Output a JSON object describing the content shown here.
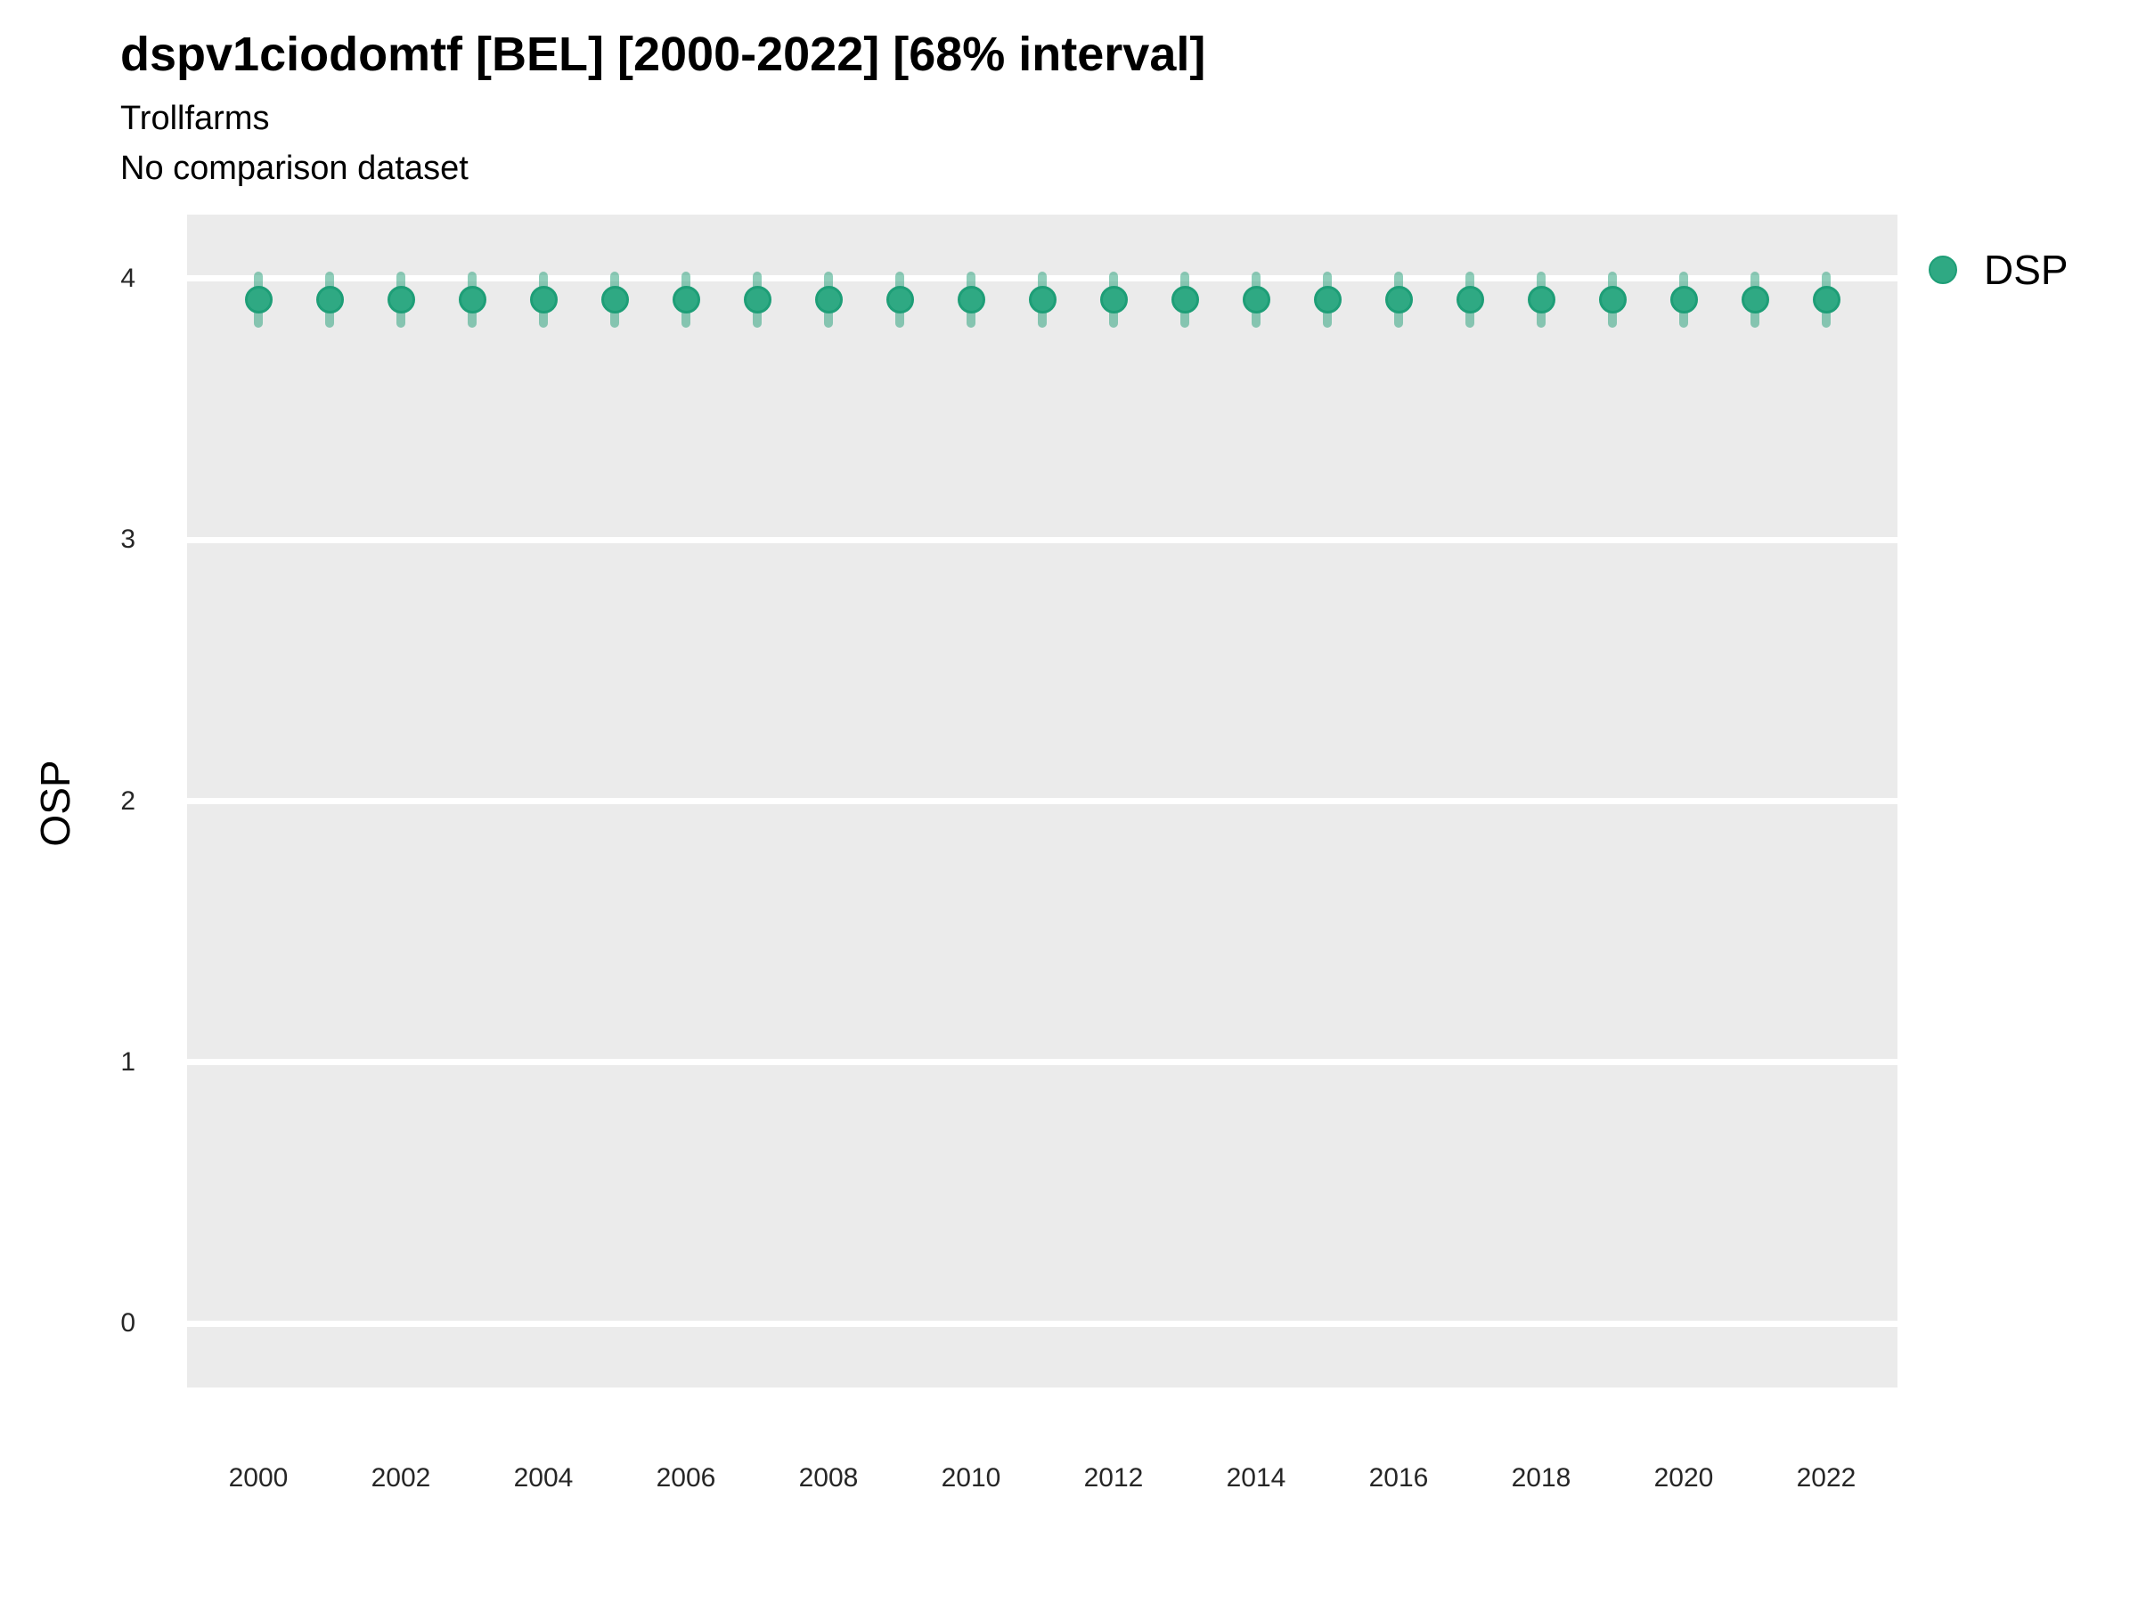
{
  "header": {
    "title": "dspv1ciodomtf [BEL] [2000-2022] [68% interval]",
    "subtitle": "Trollfarms",
    "note": "No comparison dataset"
  },
  "legend": {
    "label": "DSP"
  },
  "colors": {
    "plot_bg": "#EBEBEB",
    "gridline": "#FFFFFF",
    "point_fill": "#2FA983",
    "point_stroke": "#1E9E77",
    "interval_rgba": "rgba(32,158,118,0.5)",
    "tick_text": "#262626",
    "text": "#000000"
  },
  "chart_data": {
    "type": "scatter",
    "title": "dspv1ciodomtf [BEL] [2000-2022] [68% interval]",
    "subtitle": "Trollfarms",
    "note": "No comparison dataset",
    "xlabel": "",
    "ylabel": "OSP",
    "xlim": [
      1999,
      2023
    ],
    "ylim": [
      -0.245,
      4.245
    ],
    "yticks": [
      0,
      1,
      2,
      3,
      4
    ],
    "xticks": [
      2000,
      2002,
      2004,
      2006,
      2008,
      2010,
      2012,
      2014,
      2016,
      2018,
      2020,
      2022
    ],
    "grid": "horizontal-only",
    "legend_position": "right",
    "series": [
      {
        "name": "DSP",
        "x": [
          2000,
          2001,
          2002,
          2003,
          2004,
          2005,
          2006,
          2007,
          2008,
          2009,
          2010,
          2011,
          2012,
          2013,
          2014,
          2015,
          2016,
          2017,
          2018,
          2019,
          2020,
          2021,
          2022
        ],
        "y": [
          3.92,
          3.92,
          3.92,
          3.92,
          3.92,
          3.92,
          3.92,
          3.92,
          3.92,
          3.92,
          3.92,
          3.92,
          3.92,
          3.92,
          3.92,
          3.92,
          3.92,
          3.92,
          3.92,
          3.92,
          3.92,
          3.92,
          3.92
        ],
        "y_lo": [
          3.83,
          3.83,
          3.83,
          3.83,
          3.83,
          3.83,
          3.83,
          3.83,
          3.83,
          3.83,
          3.83,
          3.83,
          3.83,
          3.83,
          3.83,
          3.83,
          3.83,
          3.83,
          3.83,
          3.83,
          3.83,
          3.83,
          3.83
        ],
        "y_hi": [
          4.01,
          4.01,
          4.01,
          4.01,
          4.01,
          4.01,
          4.01,
          4.01,
          4.01,
          4.01,
          4.01,
          4.01,
          4.01,
          4.01,
          4.01,
          4.01,
          4.01,
          4.01,
          4.01,
          4.01,
          4.01,
          4.01,
          4.01
        ]
      }
    ]
  }
}
